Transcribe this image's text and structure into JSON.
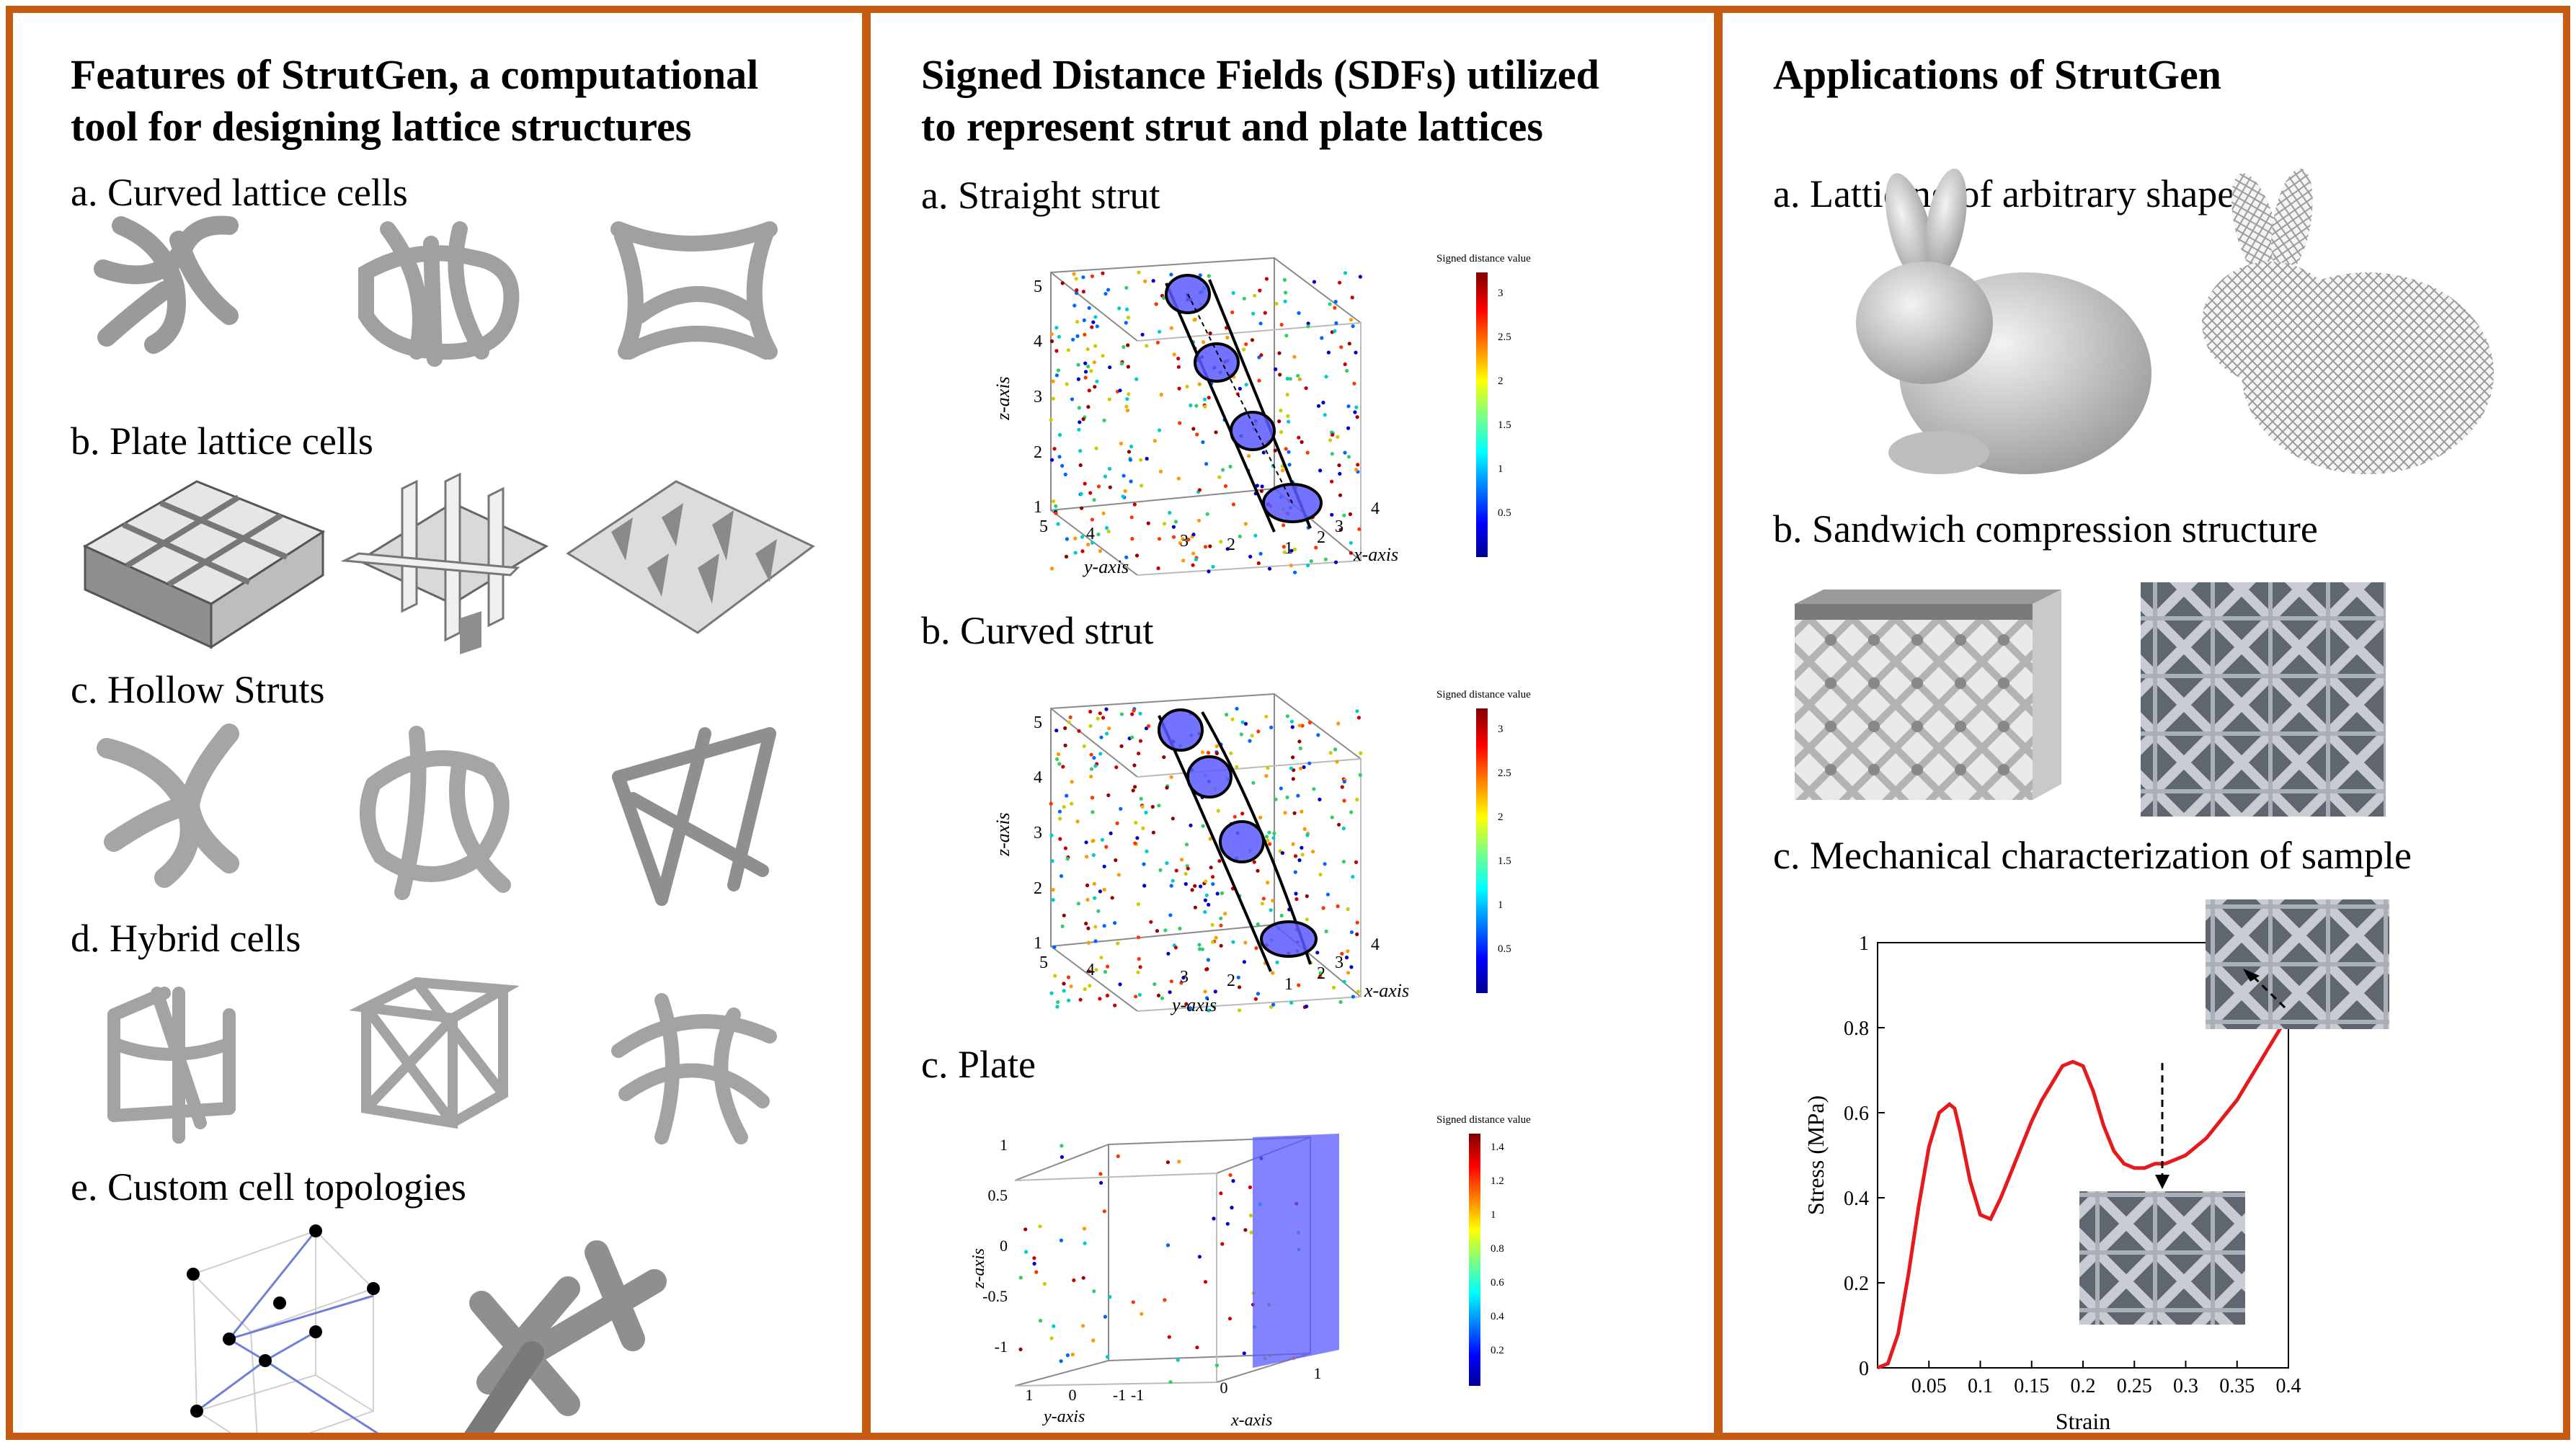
{
  "left_panel": {
    "title_line1": "Features of StrutGen, a computational",
    "title_line2": "tool for designing lattice structures",
    "items": [
      "a. Curved lattice cells",
      "b. Plate lattice cells",
      "c. Hollow Struts",
      "d. Hybrid cells",
      "e. Custom cell topologies"
    ]
  },
  "middle_panel": {
    "title_line1": "Signed Distance Fields (SDFs) utilized",
    "title_line2": "to represent strut and plate lattices",
    "items": [
      "a. Straight strut",
      "b. Curved strut",
      "c. Plate"
    ],
    "plot_a": {
      "colorbar_title": "Signed distance value",
      "colorbar_ticks": [
        "3",
        "2.5",
        "2",
        "1.5",
        "1",
        "0.5"
      ],
      "z_label": "z-axis",
      "y_label": "y-axis",
      "x_label": "x-axis",
      "z_ticks": [
        "5",
        "4",
        "3",
        "2",
        "1"
      ],
      "y_ticks": [
        "5",
        "4",
        "3",
        "2",
        "1"
      ],
      "x_ticks": [
        "2",
        "3",
        "4"
      ]
    },
    "plot_b": {
      "colorbar_title": "Signed distance value",
      "colorbar_ticks": [
        "3",
        "2.5",
        "2",
        "1.5",
        "1",
        "0.5"
      ],
      "z_label": "z-axis",
      "y_label": "y-axis",
      "x_label": "x-axis",
      "z_ticks": [
        "5",
        "4",
        "3",
        "2",
        "1"
      ],
      "y_ticks": [
        "5",
        "4",
        "3",
        "2",
        "1"
      ],
      "x_ticks": [
        "2",
        "3",
        "4"
      ]
    },
    "plot_c": {
      "colorbar_title": "Signed distance value",
      "colorbar_ticks": [
        "1.4",
        "1.2",
        "1",
        "0.8",
        "0.6",
        "0.4",
        "0.2"
      ],
      "z_label": "z-axis",
      "y_label": "y-axis",
      "x_label": "x-axis",
      "z_ticks": [
        "1",
        "0.5",
        "0",
        "-0.5",
        "-1"
      ],
      "y_ticks": [
        "1",
        "0",
        "-1"
      ],
      "x_ticks": [
        "-1",
        "0",
        "1"
      ]
    }
  },
  "right_panel": {
    "title": "Applications of StrutGen",
    "items": [
      "a. Latticing of arbitrary shapes",
      "b. Sandwich compression structure",
      "c. Mechanical characterization of sample"
    ]
  },
  "colors": {
    "frame": "#c55a11",
    "curve": "#e41a1c",
    "strut": "#5a5aff"
  },
  "chart_data": {
    "type": "line",
    "title": "",
    "xlabel": "Strain",
    "ylabel": "Stress (MPa)",
    "xlim": [
      0,
      0.4
    ],
    "ylim": [
      0,
      1
    ],
    "x_ticks": [
      0.05,
      0.1,
      0.15,
      0.2,
      0.25,
      0.3,
      0.35,
      0.4
    ],
    "y_ticks": [
      0,
      0.2,
      0.4,
      0.6,
      0.8,
      1
    ],
    "x_tick_labels": [
      "0.05",
      "0.1",
      "0.15",
      "0.2",
      "0.25",
      "0.3",
      "0.35",
      "0.4"
    ],
    "y_tick_labels": [
      "0",
      "0.2",
      "0.4",
      "0.6",
      "0.8",
      "1"
    ],
    "series": [
      {
        "color": "#e41a1c",
        "x": [
          0,
          0.01,
          0.02,
          0.03,
          0.04,
          0.05,
          0.06,
          0.07,
          0.075,
          0.08,
          0.09,
          0.1,
          0.11,
          0.12,
          0.13,
          0.14,
          0.15,
          0.16,
          0.17,
          0.18,
          0.19,
          0.2,
          0.21,
          0.22,
          0.23,
          0.24,
          0.25,
          0.26,
          0.27,
          0.28,
          0.29,
          0.3,
          0.31,
          0.32,
          0.33,
          0.34,
          0.35,
          0.36,
          0.37,
          0.38,
          0.39,
          0.4
        ],
        "y": [
          0,
          0.01,
          0.08,
          0.22,
          0.38,
          0.52,
          0.6,
          0.62,
          0.61,
          0.56,
          0.44,
          0.36,
          0.35,
          0.4,
          0.46,
          0.52,
          0.58,
          0.63,
          0.67,
          0.71,
          0.72,
          0.71,
          0.65,
          0.57,
          0.51,
          0.48,
          0.47,
          0.47,
          0.48,
          0.48,
          0.49,
          0.5,
          0.52,
          0.54,
          0.57,
          0.6,
          0.63,
          0.67,
          0.71,
          0.75,
          0.79,
          0.83
        ]
      }
    ]
  }
}
